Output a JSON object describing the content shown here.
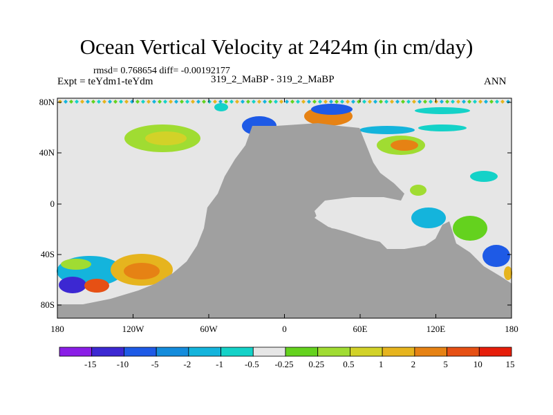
{
  "title": "Ocean Vertical Velocity at 2424m (in cm/day)",
  "stats": "rmsd= 0.768654 diff= -0.00192177",
  "expt": "Expt = teYdm1-teYdm",
  "case": "319_2_MaBP - 319_2_MaBP",
  "season": "ANN",
  "axes": {
    "lat_ticks": [
      "80N",
      "40N",
      "0",
      "40S",
      "80S"
    ],
    "lon_ticks": [
      "180",
      "120W",
      "60W",
      "0",
      "60E",
      "120E",
      "180"
    ]
  },
  "colorbar": {
    "labels": [
      "-15",
      "-10",
      "-5",
      "-2",
      "-1",
      "-0.5",
      "-0.25",
      "0.25",
      "0.5",
      "1",
      "2",
      "5",
      "10",
      "15"
    ],
    "colors": [
      "#8a1ee6",
      "#3c28d2",
      "#1e5ae6",
      "#148cdc",
      "#14b4dc",
      "#14d2c8",
      "#e6e6e6",
      "#64d21e",
      "#a0dc32",
      "#d2d228",
      "#e6b41e",
      "#e68214",
      "#e65014",
      "#e61e0a"
    ]
  },
  "style": {
    "land": "#a0a0a0",
    "ocean_zero": "#e6e6e6"
  }
}
